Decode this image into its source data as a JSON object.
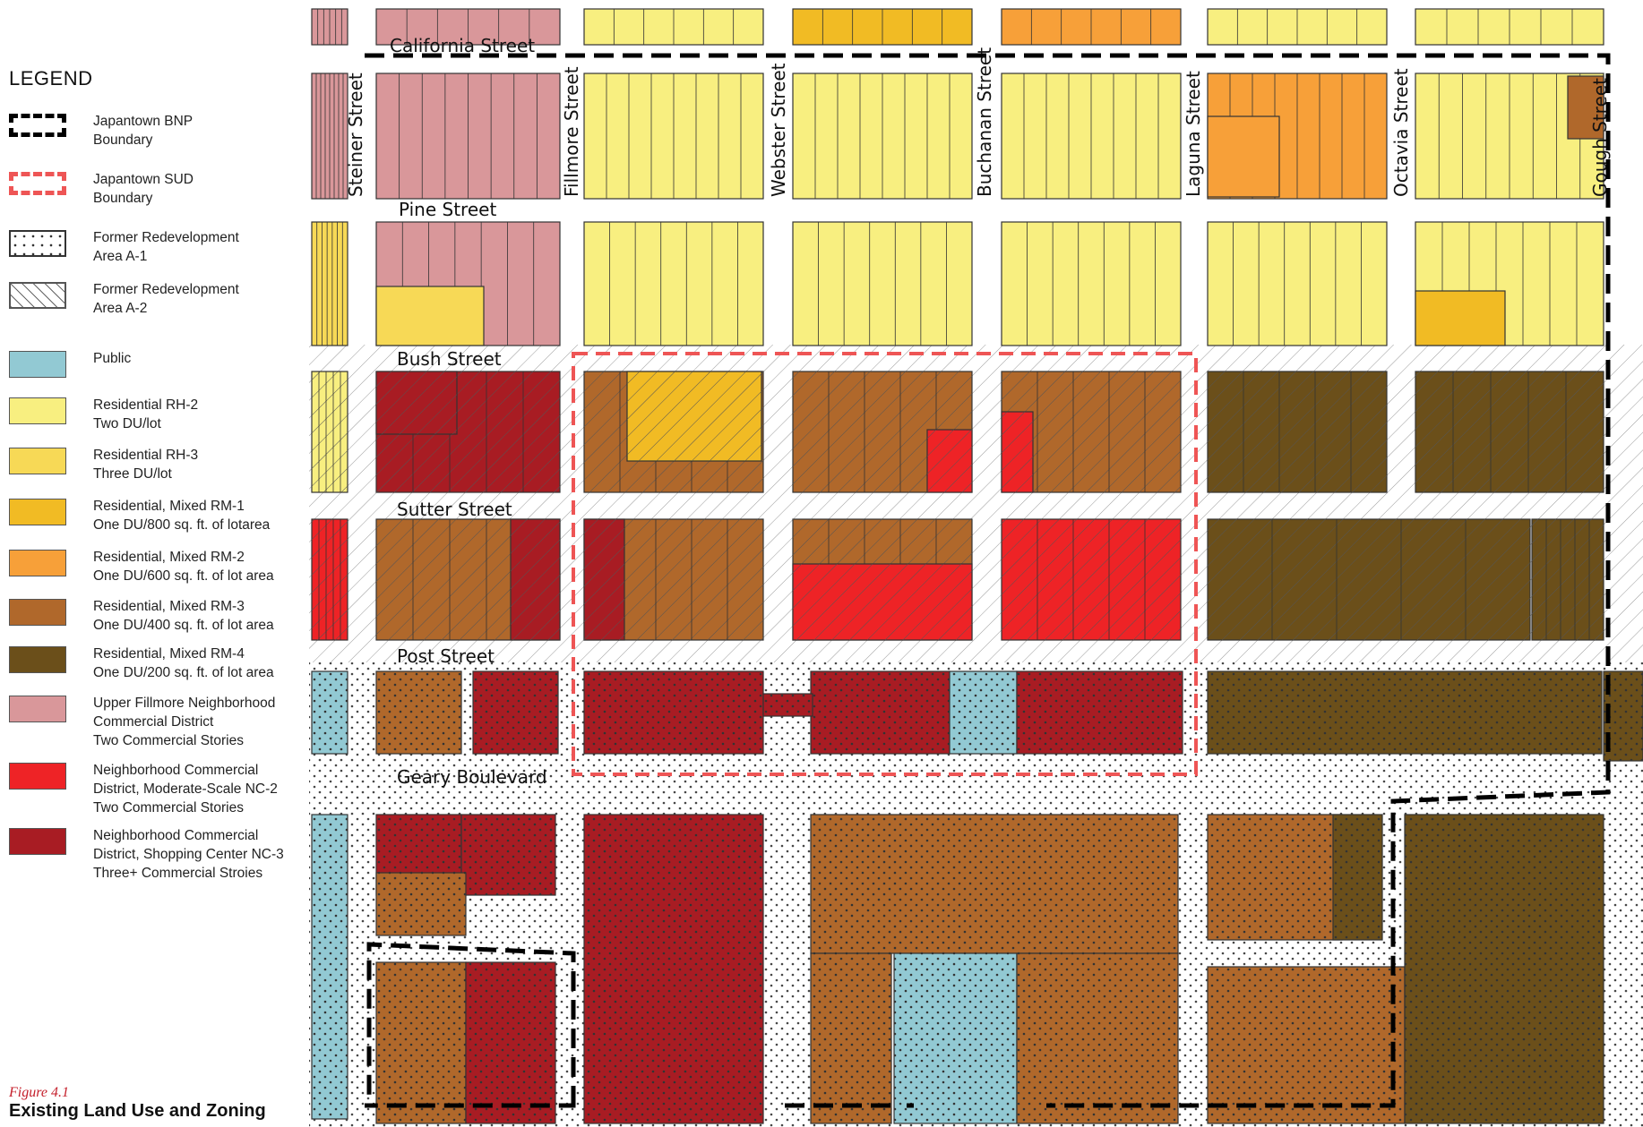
{
  "legend": {
    "title": "LEGEND",
    "items": [
      {
        "id": "bnp-boundary",
        "label": "Japantown BNP\nBoundary",
        "swatch": "dash-black",
        "color": "#000000"
      },
      {
        "id": "sud-boundary",
        "label": "Japantown SUD\nBoundary",
        "swatch": "dash-red",
        "color": "#ee5555"
      },
      {
        "id": "redevelopment-a1",
        "label": "Former Redevelopment\nArea  A-1",
        "swatch": "dots",
        "color": "#ffffff"
      },
      {
        "id": "redevelopment-a2",
        "label": "Former Redevelopment\nArea  A-2",
        "swatch": "hatch",
        "color": "#ffffff"
      },
      {
        "id": "public",
        "label": "Public",
        "swatch": "fill",
        "color": "#92c9d3"
      },
      {
        "id": "rh2",
        "label": "Residential RH-2\nTwo DU/lot",
        "swatch": "fill",
        "color": "#f8ef80"
      },
      {
        "id": "rh3",
        "label": "Residential RH-3\nThree DU/lot",
        "swatch": "fill",
        "color": "#f7d956"
      },
      {
        "id": "rm1",
        "label": "Residential, Mixed RM-1\nOne DU/800 sq. ft. of lotarea",
        "swatch": "fill",
        "color": "#f1bb24"
      },
      {
        "id": "rm2",
        "label": "Residential, Mixed RM-2\nOne DU/600 sq. ft. of lot area",
        "swatch": "fill",
        "color": "#f7a039"
      },
      {
        "id": "rm3",
        "label": "Residential, Mixed RM-3\nOne DU/400 sq. ft. of lot area",
        "swatch": "fill",
        "color": "#b0682b"
      },
      {
        "id": "rm4",
        "label": "Residential, Mixed RM-4\nOne DU/200 sq. ft. of lot area",
        "swatch": "fill",
        "color": "#6b4f1a"
      },
      {
        "id": "nc-fillmore",
        "label": "Upper Fillmore Neighborhood\nCommercial District\nTwo Commercial Stories",
        "swatch": "fill",
        "color": "#d9979a"
      },
      {
        "id": "nc2",
        "label": "Neighborhood Commercial\nDistrict, Moderate-Scale NC-2\nTwo Commercial Stories",
        "swatch": "fill",
        "color": "#ee2326"
      },
      {
        "id": "nc3",
        "label": "Neighborhood Commercial\nDistrict, Shopping Center NC-3\nThree+ Commercial Stroies",
        "swatch": "fill",
        "color": "#a81c23"
      }
    ]
  },
  "figure": {
    "label": "Figure 4.1",
    "title": "Existing Land Use and Zoning"
  },
  "streets": {
    "california": "California Street",
    "pine": "Pine Street",
    "bush": "Bush Street",
    "sutter": "Sutter Street",
    "post": "Post Street",
    "geary": "Geary Boulevard",
    "steiner": "Steiner Street",
    "fillmore": "Fillmore Street",
    "webster": "Webster Street",
    "buchanan": "Buchanan Street",
    "laguna": "Laguna Street",
    "octavia": "Octavia Street",
    "gough": "Gough Street"
  },
  "map_blocks": [
    {
      "name": "california-north-row",
      "colors": [
        "#d9979a",
        "#f8ef80",
        "#f1bb24",
        "#92c9d3",
        "#f7a039",
        "#b0682b"
      ]
    },
    {
      "name": "pine-california-row",
      "zones": [
        "nc-fillmore",
        "nc-fillmore",
        "rh2",
        "rh2",
        "rh2",
        "rm2",
        "rm3"
      ]
    },
    {
      "name": "bush-pine-row",
      "zones": [
        "rh3",
        "nc-fillmore",
        "rh2",
        "rh2",
        "rh2",
        "rh2",
        "rm1"
      ]
    },
    {
      "name": "sutter-bush-row",
      "zones": [
        "nc3",
        "nc3",
        "rm3",
        "rm3",
        "rm4",
        "rm4"
      ]
    },
    {
      "name": "post-sutter-row",
      "zones": [
        "nc2",
        "rm3",
        "rm3",
        "nc2",
        "nc2",
        "rm4"
      ]
    },
    {
      "name": "geary-post-row",
      "zones": [
        "public",
        "rm3",
        "nc3",
        "nc3",
        "nc3",
        "public",
        "rm4"
      ]
    },
    {
      "name": "south-of-geary",
      "zones": [
        "public",
        "nc3",
        "nc3",
        "rm3",
        "public",
        "rm3",
        "rm4"
      ]
    }
  ]
}
